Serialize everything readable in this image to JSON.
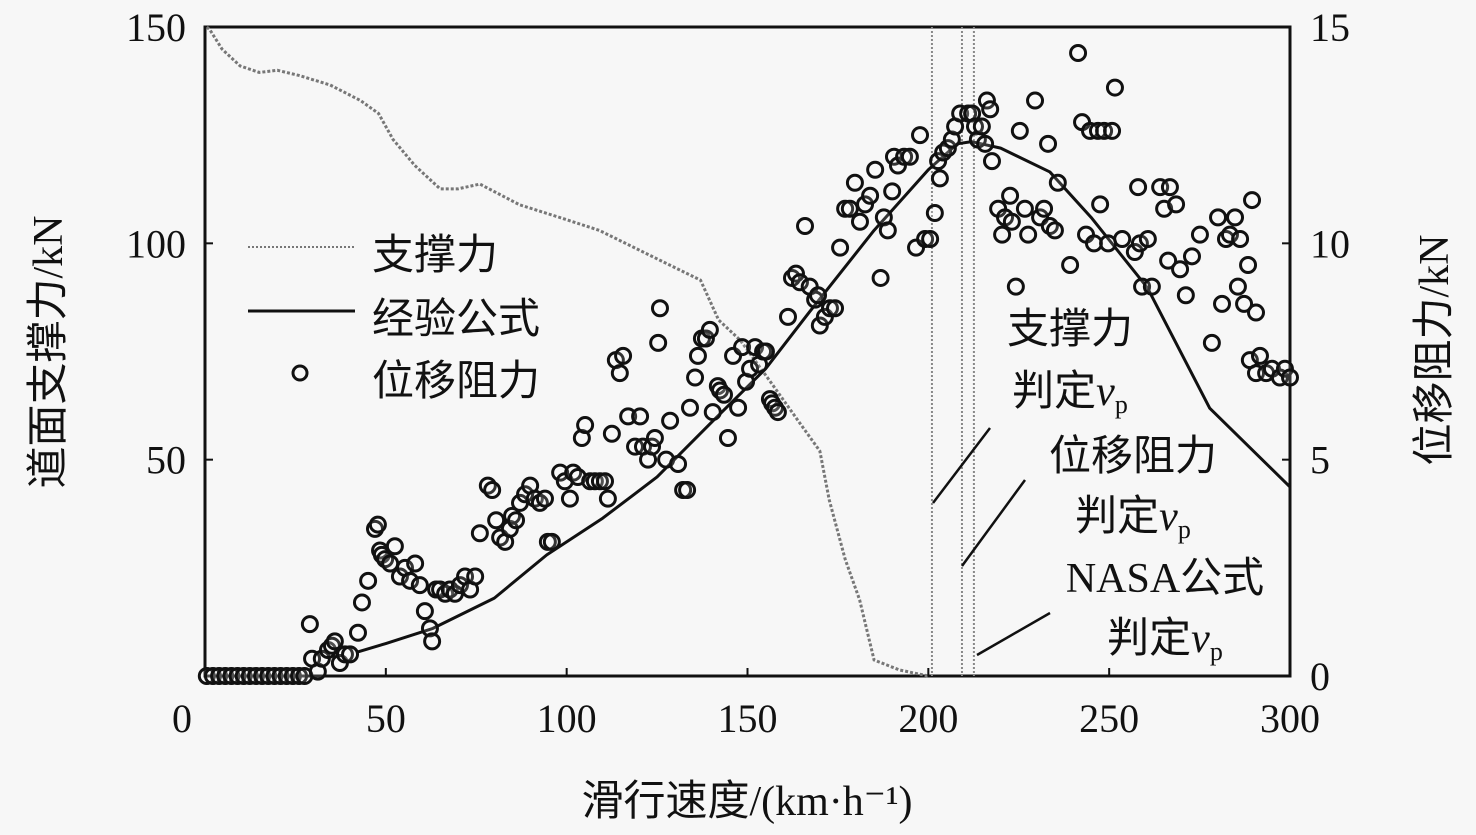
{
  "chart_data": {
    "type": "scatter+line",
    "xlabel": "滑行速度/(km·h⁻¹)",
    "ylabel_left": "道面支撑力/kN",
    "ylabel_right": "位移阻力/kN",
    "xlim": [
      0,
      300
    ],
    "ylim_left": [
      0,
      150
    ],
    "ylim_right": [
      0,
      15
    ],
    "x_ticks": [
      "0",
      "50",
      "100",
      "150",
      "200",
      "250",
      "300"
    ],
    "y_left_ticks": [
      "50",
      "100",
      "150"
    ],
    "y_right_ticks": [
      "0",
      "5",
      "10",
      "15"
    ],
    "grid": false,
    "legend_position": "left-middle",
    "legend": [
      {
        "label": "支撑力",
        "style": "dotted-line"
      },
      {
        "label": "经验公式",
        "style": "solid-line"
      },
      {
        "label": "位移阻力",
        "style": "circle-marker"
      }
    ],
    "series": [
      {
        "name": "支撑力",
        "axis": "left",
        "type": "line",
        "color": "#777777",
        "points": [
          [
            0.5,
            150
          ],
          [
            1.4,
            149.3
          ],
          [
            4.7,
            144.9
          ],
          [
            9.7,
            141
          ],
          [
            15,
            139.5
          ],
          [
            20,
            140
          ],
          [
            26,
            138.8
          ],
          [
            34.6,
            136.6
          ],
          [
            43,
            133
          ],
          [
            48,
            130
          ],
          [
            52,
            124
          ],
          [
            58,
            118
          ],
          [
            65,
            112.6
          ],
          [
            70,
            112.6
          ],
          [
            76,
            113.7
          ],
          [
            87,
            108.9
          ],
          [
            98,
            106
          ],
          [
            109,
            103
          ],
          [
            126,
            96
          ],
          [
            137,
            91.5
          ],
          [
            142,
            82.3
          ],
          [
            148,
            77.6
          ],
          [
            156,
            68.4
          ],
          [
            164,
            59
          ],
          [
            170,
            52
          ],
          [
            172.6,
            40.7
          ],
          [
            177,
            27
          ],
          [
            181,
            17.6
          ],
          [
            185,
            3.7
          ],
          [
            192,
            1.4
          ],
          [
            200,
            0
          ]
        ]
      },
      {
        "name": "经验公式",
        "axis": "right",
        "type": "line",
        "color": "#111111",
        "points": [
          [
            42,
            0.55
          ],
          [
            50,
            0.75
          ],
          [
            63,
            1.1
          ],
          [
            80,
            1.8
          ],
          [
            94.5,
            2.8
          ],
          [
            110,
            3.65
          ],
          [
            125,
            4.6
          ],
          [
            140.5,
            5.9
          ],
          [
            155,
            7.1
          ],
          [
            167,
            8.4
          ],
          [
            185,
            10.3
          ],
          [
            200,
            11.7
          ],
          [
            208,
            12.3
          ],
          [
            212,
            12.35
          ],
          [
            220,
            12.2
          ],
          [
            233.6,
            11.65
          ],
          [
            245,
            10.6
          ],
          [
            260.6,
            8.97
          ],
          [
            277.8,
            6.19
          ],
          [
            300,
            4.37
          ]
        ]
      },
      {
        "name": "位移阻力",
        "axis": "right",
        "type": "scatter",
        "color": "#111111",
        "points": [
          [
            0.5,
            0
          ],
          [
            2.2,
            0
          ],
          [
            3.9,
            0
          ],
          [
            5.6,
            0
          ],
          [
            7.3,
            0
          ],
          [
            9,
            0
          ],
          [
            10.7,
            0
          ],
          [
            12.4,
            0
          ],
          [
            14.1,
            0
          ],
          [
            15.8,
            0
          ],
          [
            17.5,
            0
          ],
          [
            19.2,
            0
          ],
          [
            20.9,
            0
          ],
          [
            22.6,
            0
          ],
          [
            24.3,
            0
          ],
          [
            26,
            0
          ],
          [
            27.5,
            0
          ],
          [
            29,
            1.2
          ],
          [
            29.6,
            0.4
          ],
          [
            31.2,
            0.1
          ],
          [
            32.3,
            0.4
          ],
          [
            34,
            0.6
          ],
          [
            35.1,
            0.7
          ],
          [
            35.9,
            0.8
          ],
          [
            37.3,
            0.3
          ],
          [
            38.7,
            0.5
          ],
          [
            40.1,
            0.5
          ],
          [
            42.3,
            1
          ],
          [
            43.4,
            1.7
          ],
          [
            45.1,
            2.2
          ],
          [
            47,
            3.4
          ],
          [
            47.8,
            3.5
          ],
          [
            48.4,
            2.9
          ],
          [
            48.9,
            2.8
          ],
          [
            49.8,
            2.7
          ],
          [
            51.2,
            2.6
          ],
          [
            52.5,
            3
          ],
          [
            53.9,
            2.3
          ],
          [
            55.3,
            2.5
          ],
          [
            56.7,
            2.2
          ],
          [
            58.1,
            2.6
          ],
          [
            59.4,
            2.1
          ],
          [
            60.8,
            1.5
          ],
          [
            62.2,
            1.1
          ],
          [
            62.8,
            0.8
          ],
          [
            63.9,
            2
          ],
          [
            65,
            2
          ],
          [
            66.4,
            1.9
          ],
          [
            67.7,
            2
          ],
          [
            69.1,
            1.9
          ],
          [
            70.5,
            2.1
          ],
          [
            71.9,
            2.3
          ],
          [
            73.3,
            2
          ],
          [
            74.7,
            2.3
          ],
          [
            76,
            3.3
          ],
          [
            78.2,
            4.4
          ],
          [
            79.4,
            4.3
          ],
          [
            80.5,
            3.6
          ],
          [
            81.6,
            3.2
          ],
          [
            83,
            3.1
          ],
          [
            84.3,
            3.4
          ],
          [
            84.9,
            3.7
          ],
          [
            86,
            3.6
          ],
          [
            87.1,
            4
          ],
          [
            88.5,
            4.2
          ],
          [
            89.9,
            4.4
          ],
          [
            91.2,
            4.1
          ],
          [
            92.6,
            4
          ],
          [
            94,
            4.1
          ],
          [
            94.8,
            3.1
          ],
          [
            95.9,
            3.1
          ],
          [
            98.2,
            4.7
          ],
          [
            99.5,
            4.5
          ],
          [
            100.9,
            4.1
          ],
          [
            101.8,
            4.7
          ],
          [
            103.1,
            4.6
          ],
          [
            104.2,
            5.5
          ],
          [
            105.1,
            5.8
          ],
          [
            106.5,
            4.5
          ],
          [
            107.8,
            4.5
          ],
          [
            109.2,
            4.5
          ],
          [
            110.6,
            4.5
          ],
          [
            111.4,
            4.1
          ],
          [
            112.5,
            5.6
          ],
          [
            113.6,
            7.3
          ],
          [
            114.7,
            7
          ],
          [
            115.6,
            7.4
          ],
          [
            117,
            6
          ],
          [
            118.9,
            5.3
          ],
          [
            120.3,
            6
          ],
          [
            121.1,
            5.3
          ],
          [
            122.5,
            5
          ],
          [
            123.6,
            5.3
          ],
          [
            124.4,
            5.5
          ],
          [
            125.3,
            7.7
          ],
          [
            125.8,
            8.5
          ],
          [
            127.5,
            5
          ],
          [
            128.6,
            5.9
          ],
          [
            130.8,
            4.9
          ],
          [
            132.2,
            4.3
          ],
          [
            133.3,
            4.3
          ],
          [
            134.1,
            6.2
          ],
          [
            135.5,
            6.9
          ],
          [
            136.3,
            7.4
          ],
          [
            137.4,
            7.8
          ],
          [
            138.5,
            7.8
          ],
          [
            139.6,
            8
          ],
          [
            140.4,
            6.1
          ],
          [
            141.8,
            6.7
          ],
          [
            142.4,
            6.6
          ],
          [
            143.5,
            6.5
          ],
          [
            144.6,
            5.5
          ],
          [
            146,
            7.4
          ],
          [
            147.4,
            6.2
          ],
          [
            148.5,
            7.6
          ],
          [
            149.6,
            6.8
          ],
          [
            150.7,
            7.1
          ],
          [
            152.1,
            7.6
          ],
          [
            153.2,
            7.2
          ],
          [
            154.3,
            7.5
          ],
          [
            155.1,
            7.5
          ],
          [
            156.2,
            6.4
          ],
          [
            156.8,
            6.3
          ],
          [
            157.6,
            6.2
          ],
          [
            158.4,
            6.1
          ],
          [
            161.2,
            8.3
          ],
          [
            162.3,
            9.2
          ],
          [
            163.4,
            9.3
          ],
          [
            164.5,
            9.1
          ],
          [
            165.9,
            10.4
          ],
          [
            167.2,
            9
          ],
          [
            168.7,
            8.7
          ],
          [
            169.5,
            8.8
          ],
          [
            170,
            8.1
          ],
          [
            171.4,
            8.3
          ],
          [
            172.8,
            8.5
          ],
          [
            174.2,
            8.5
          ],
          [
            175.6,
            9.9
          ],
          [
            177,
            10.8
          ],
          [
            178.3,
            10.8
          ],
          [
            179.7,
            11.4
          ],
          [
            181.1,
            10.5
          ],
          [
            182.5,
            10.9
          ],
          [
            183.9,
            11.1
          ],
          [
            185.3,
            11.7
          ],
          [
            186.8,
            9.2
          ],
          [
            187.7,
            10.6
          ],
          [
            188.8,
            10.3
          ],
          [
            190,
            11.2
          ],
          [
            190.5,
            12
          ],
          [
            191.6,
            11.8
          ],
          [
            193.3,
            12
          ],
          [
            194.9,
            12
          ],
          [
            196.6,
            9.9
          ],
          [
            197.7,
            12.5
          ],
          [
            199.1,
            10.1
          ],
          [
            200.5,
            10.1
          ],
          [
            201.8,
            10.7
          ],
          [
            202.7,
            11.9
          ],
          [
            203.2,
            11.5
          ],
          [
            204.1,
            12.1
          ],
          [
            205.4,
            12.2
          ],
          [
            206.5,
            12.4
          ],
          [
            207.4,
            12.7
          ],
          [
            208.8,
            13
          ],
          [
            211,
            13
          ],
          [
            212.1,
            13
          ],
          [
            212.9,
            12.7
          ],
          [
            213.7,
            12.4
          ],
          [
            214.8,
            12.7
          ],
          [
            215.7,
            12.3
          ],
          [
            216.2,
            13.3
          ],
          [
            217.1,
            13.1
          ],
          [
            217.6,
            11.9
          ],
          [
            219.3,
            10.8
          ],
          [
            220.4,
            10.2
          ],
          [
            221.2,
            10.6
          ],
          [
            222.6,
            11.1
          ],
          [
            223.1,
            10.5
          ],
          [
            224.2,
            9
          ],
          [
            225.3,
            12.6
          ],
          [
            226.7,
            10.8
          ],
          [
            227.6,
            10.2
          ],
          [
            229.5,
            13.3
          ],
          [
            230.9,
            10.6
          ],
          [
            232,
            10.8
          ],
          [
            233.1,
            12.3
          ],
          [
            233.6,
            10.4
          ],
          [
            235,
            10.3
          ],
          [
            235.8,
            11.4
          ],
          [
            239.2,
            9.5
          ],
          [
            241.4,
            14.4
          ],
          [
            242.5,
            12.8
          ],
          [
            243.6,
            10.2
          ],
          [
            244.7,
            12.6
          ],
          [
            245.8,
            10
          ],
          [
            246.9,
            12.6
          ],
          [
            247.5,
            10.9
          ],
          [
            248.6,
            12.6
          ],
          [
            249.7,
            10
          ],
          [
            250.8,
            12.6
          ],
          [
            251.6,
            13.6
          ],
          [
            253.6,
            10.1
          ],
          [
            257.1,
            9.8
          ],
          [
            258,
            11.3
          ],
          [
            258.5,
            10
          ],
          [
            259.1,
            9
          ],
          [
            260.7,
            10.1
          ],
          [
            261.8,
            9
          ],
          [
            264.1,
            11.3
          ],
          [
            265.2,
            10.8
          ],
          [
            266.3,
            9.6
          ],
          [
            266.8,
            11.3
          ],
          [
            268.5,
            10.9
          ],
          [
            269.6,
            9.4
          ],
          [
            271.2,
            8.8
          ],
          [
            272.9,
            9.7
          ],
          [
            275.1,
            10.2
          ],
          [
            278.4,
            7.7
          ],
          [
            280.1,
            10.6
          ],
          [
            281.2,
            8.6
          ],
          [
            282.3,
            10.1
          ],
          [
            283.4,
            10.2
          ],
          [
            284.8,
            10.6
          ],
          [
            285.6,
            9
          ],
          [
            286.2,
            10.1
          ],
          [
            287.3,
            8.6
          ],
          [
            288.4,
            9.5
          ],
          [
            289.5,
            11
          ],
          [
            290.6,
            8.4
          ],
          [
            288.9,
            7.3
          ],
          [
            290.6,
            7
          ],
          [
            291.7,
            7.4
          ],
          [
            293.4,
            7
          ],
          [
            295,
            7.1
          ],
          [
            297.2,
            6.9
          ],
          [
            298.6,
            7.1
          ],
          [
            300,
            6.9
          ]
        ]
      }
    ],
    "vertical_lines": [
      {
        "x": 201,
        "label_lines": [
          "支撑力",
          "判定"
        ],
        "var": "v",
        "sub": "p"
      },
      {
        "x": 209.3,
        "label_lines": [
          "位移阻力",
          "判定"
        ],
        "var": "v",
        "sub": "p"
      },
      {
        "x": 212.6,
        "label_lines": [
          "NASA公式",
          "判定"
        ],
        "var": "v",
        "sub": "p"
      }
    ]
  }
}
